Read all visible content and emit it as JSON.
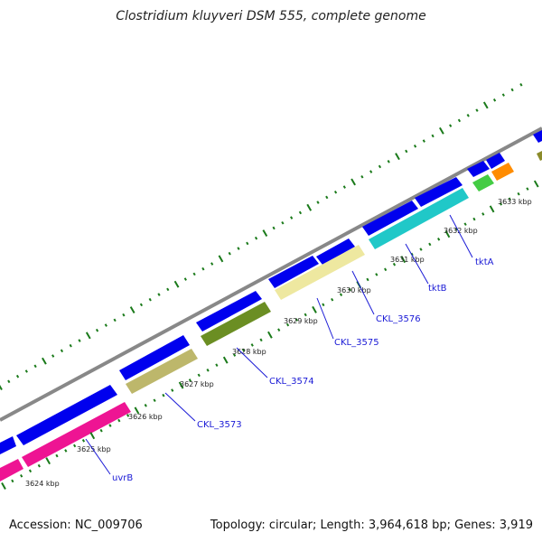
{
  "title": "Clostridium kluyveri DSM 555, complete genome",
  "footer": {
    "accession": "Accession: NC_009706",
    "summary": "Topology: circular; Length: 3,964,618 bp; Genes: 3,919"
  },
  "colors": {
    "backbone": "#888888",
    "cds_blue": "#0000ee",
    "tick_green": "#1a7a1a",
    "gene_label": "#1a1ad6"
  },
  "position_labels": [
    "3624 kbp",
    "3625 kbp",
    "3626 kbp",
    "3627 kbp",
    "3628 kbp",
    "3629 kbp",
    "3630 kbp",
    "3631 kbp",
    "3632 kbp",
    "3633 kbp"
  ],
  "gene_labels": [
    "uvrB",
    "CKL_3573",
    "CKL_3574",
    "CKL_3575",
    "CKL_3576",
    "tktB",
    "tktA"
  ]
}
